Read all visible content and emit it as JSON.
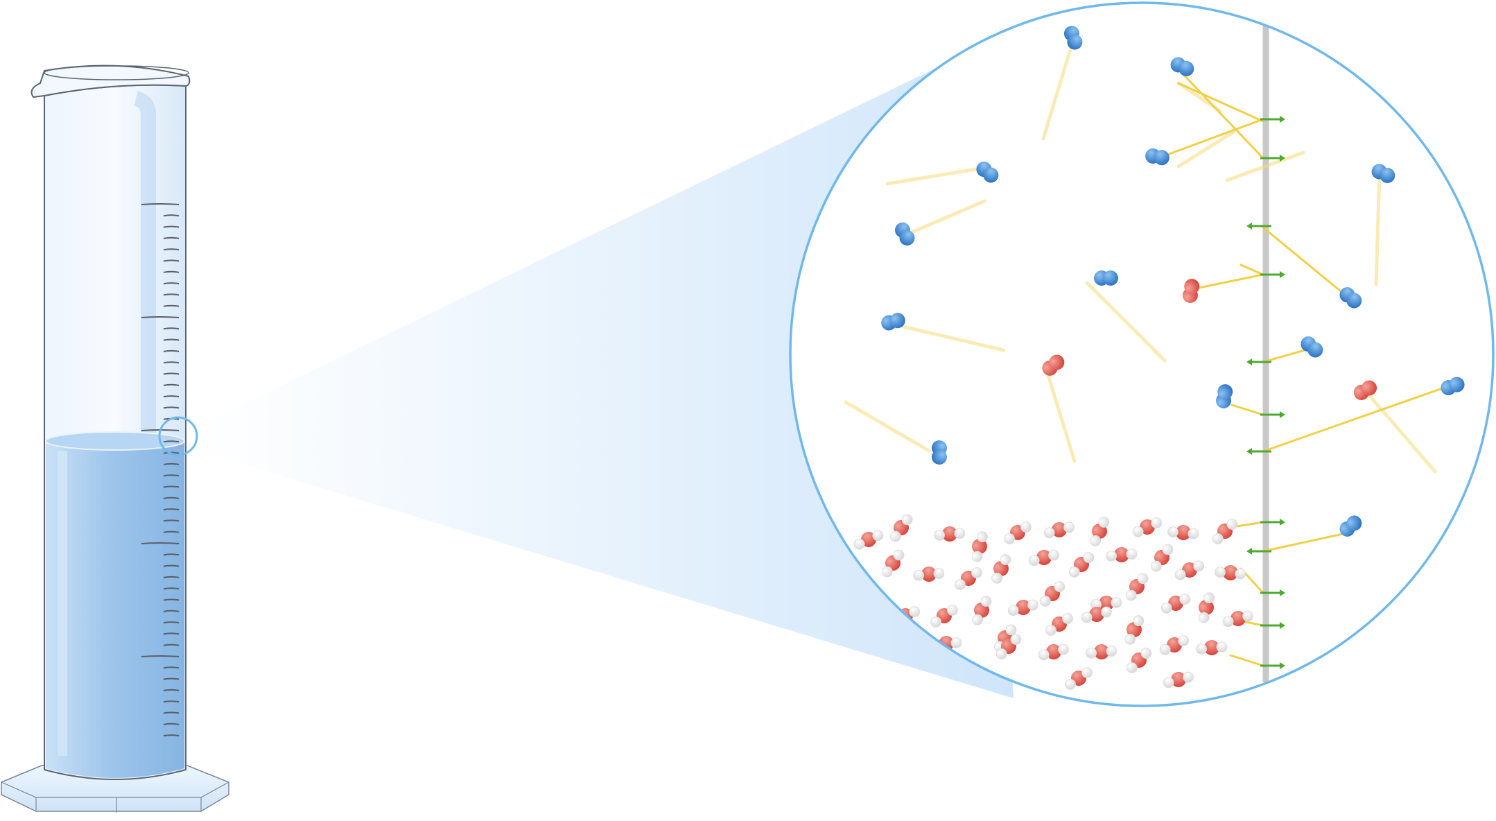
{
  "colors": {
    "background": "#ffffff",
    "liquid": "#9ec7ee",
    "liquid_light": "#c6def6",
    "glass_edge": "#5a6470",
    "zoom_border": "#6fb8ec",
    "zoom_cone": "#cfe5fa",
    "nitrogen": "#3a86d4",
    "oxygen": "#e2544a",
    "hydrogen": "#f2f2f2",
    "trail": "#f2cd3c",
    "membrane": "#c8c8c8",
    "arrow": "#4caa2f"
  },
  "icons": {
    "cylinder": "graduated-cylinder-icon",
    "magnifier": "zoom-circle-icon",
    "gas_molecule": "diatomic-molecule-icon",
    "water_molecule": "water-molecule-icon",
    "arrow": "arrow-icon"
  }
}
